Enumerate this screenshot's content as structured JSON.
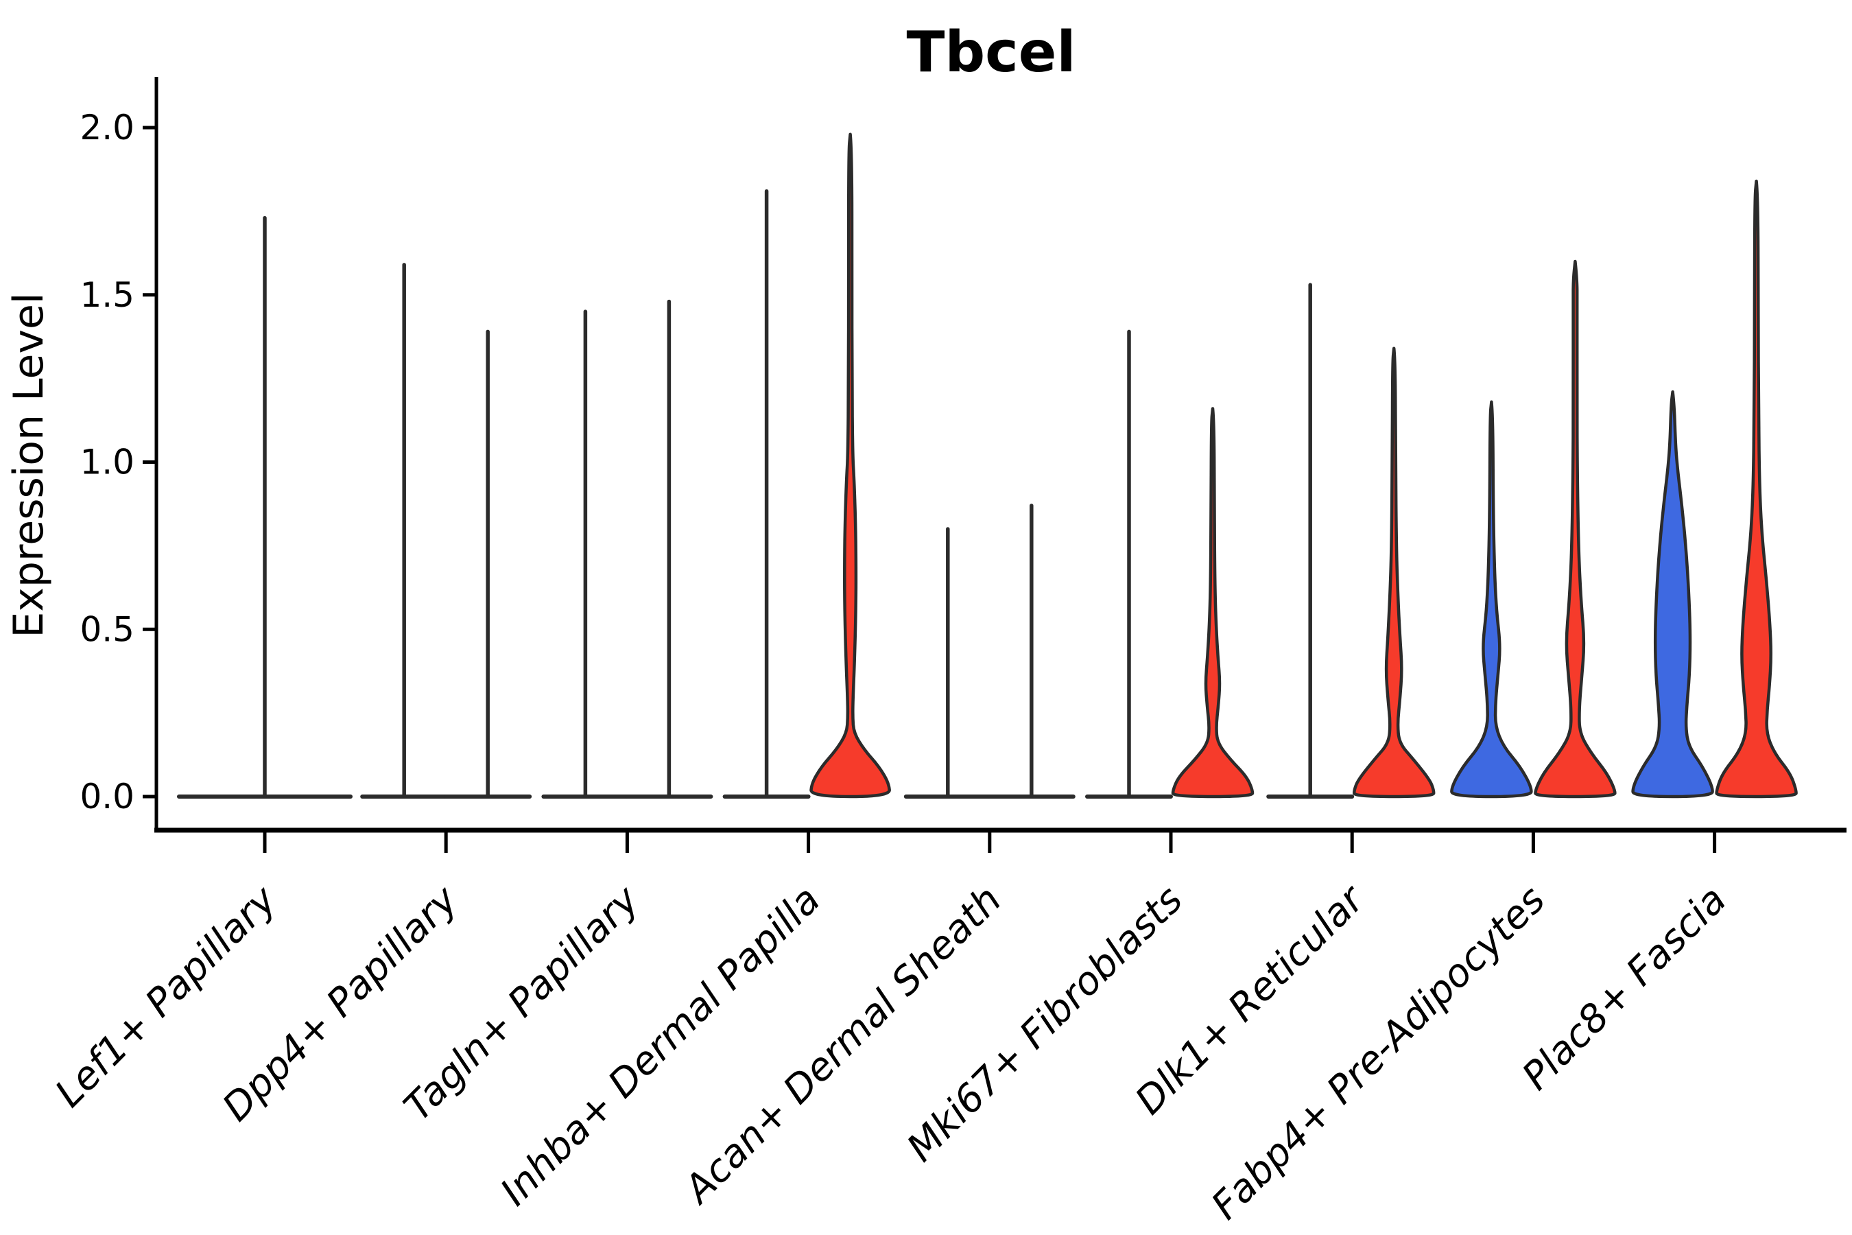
{
  "title": "Tbcel",
  "colors": {
    "background": "#ffffff",
    "axis": "#000000",
    "violin_outline": "#2b2b2b",
    "split_blue": "#3e69e1",
    "split_red": "#f63b2b"
  },
  "chart_data": {
    "type": "violin",
    "title": "Tbcel",
    "xlabel": "",
    "ylabel": "Expression Level",
    "ylim": [
      0.0,
      2.0
    ],
    "yticks": [
      {
        "value": 0.0,
        "label": "0.0"
      },
      {
        "value": 0.5,
        "label": "0.5"
      },
      {
        "value": 1.0,
        "label": "1.0"
      },
      {
        "value": 1.5,
        "label": "1.5"
      },
      {
        "value": 2.0,
        "label": "2.0"
      }
    ],
    "grid": false,
    "legend": "none",
    "categories": [
      "Lef1+ Papillary",
      "Dpp4+ Papillary",
      "Tagln+ Papillary",
      "Inhba+ Dermal Papilla",
      "Acan+ Dermal Sheath",
      "Mki67+ Fibroblasts",
      "Dlk1+ Reticular",
      "Fabp4+ Pre-Adipocytes",
      "Plac8+ Fascia"
    ],
    "groups": [
      {
        "category": "Lef1+ Papillary",
        "violins": [
          {
            "shape": "collapsed",
            "fill": "none",
            "max": 1.73,
            "width_scale": 2.05
          }
        ]
      },
      {
        "category": "Dpp4+ Papillary",
        "violins": [
          {
            "shape": "collapsed",
            "fill": "none",
            "max": 1.59
          },
          {
            "shape": "collapsed",
            "fill": "none",
            "max": 1.39
          }
        ]
      },
      {
        "category": "Tagln+ Papillary",
        "violins": [
          {
            "shape": "collapsed",
            "fill": "none",
            "max": 1.45
          },
          {
            "shape": "collapsed",
            "fill": "none",
            "max": 1.48
          }
        ]
      },
      {
        "category": "Inhba+ Dermal Papilla",
        "violins": [
          {
            "shape": "collapsed",
            "fill": "none",
            "max": 1.81
          },
          {
            "shape": "violin",
            "fill": "red",
            "max": 1.98,
            "profile": [
              [
                1.98,
                0
              ],
              [
                1.93,
                0.04
              ],
              [
                1.55,
                0.042
              ],
              [
                1.25,
                0.045
              ],
              [
                1.02,
                0.06
              ],
              [
                0.95,
                0.095
              ],
              [
                0.83,
                0.13
              ],
              [
                0.7,
                0.145
              ],
              [
                0.55,
                0.14
              ],
              [
                0.4,
                0.105
              ],
              [
                0.3,
                0.07
              ],
              [
                0.24,
                0.06
              ],
              [
                0.19,
                0.09
              ],
              [
                0.14,
                0.35
              ],
              [
                0.09,
                0.72
              ],
              [
                0.04,
                0.97
              ],
              [
                0,
                1
              ]
            ]
          }
        ]
      },
      {
        "category": "Acan+ Dermal Sheath",
        "violins": [
          {
            "shape": "collapsed",
            "fill": "none",
            "max": 0.8
          },
          {
            "shape": "collapsed",
            "fill": "none",
            "max": 0.87
          }
        ]
      },
      {
        "category": "Mki67+ Fibroblasts",
        "violins": [
          {
            "shape": "collapsed",
            "fill": "none",
            "max": 1.39
          },
          {
            "shape": "violin",
            "fill": "red",
            "max": 1.16,
            "profile": [
              [
                1.16,
                0
              ],
              [
                1.12,
                0.035
              ],
              [
                0.85,
                0.04
              ],
              [
                0.62,
                0.055
              ],
              [
                0.5,
                0.09
              ],
              [
                0.42,
                0.13
              ],
              [
                0.34,
                0.185
              ],
              [
                0.27,
                0.14
              ],
              [
                0.21,
                0.085
              ],
              [
                0.16,
                0.12
              ],
              [
                0.11,
                0.45
              ],
              [
                0.06,
                0.85
              ],
              [
                0.02,
                1
              ],
              [
                0,
                1
              ]
            ]
          }
        ]
      },
      {
        "category": "Dlk1+ Reticular",
        "violins": [
          {
            "shape": "collapsed",
            "fill": "none",
            "max": 1.53
          },
          {
            "shape": "violin",
            "fill": "red",
            "max": 1.34,
            "profile": [
              [
                1.34,
                0
              ],
              [
                1.3,
                0.035
              ],
              [
                1.0,
                0.042
              ],
              [
                0.75,
                0.06
              ],
              [
                0.6,
                0.1
              ],
              [
                0.48,
                0.15
              ],
              [
                0.38,
                0.205
              ],
              [
                0.29,
                0.15
              ],
              [
                0.22,
                0.09
              ],
              [
                0.16,
                0.13
              ],
              [
                0.11,
                0.5
              ],
              [
                0.05,
                0.9
              ],
              [
                0.02,
                1
              ],
              [
                0,
                1
              ]
            ]
          }
        ]
      },
      {
        "category": "Fabp4+ Pre-Adipocytes",
        "violins": [
          {
            "shape": "violin",
            "fill": "blue",
            "max": 1.18,
            "profile": [
              [
                1.18,
                0
              ],
              [
                1.14,
                0.035
              ],
              [
                0.85,
                0.045
              ],
              [
                0.66,
                0.08
              ],
              [
                0.55,
                0.13
              ],
              [
                0.45,
                0.225
              ],
              [
                0.36,
                0.16
              ],
              [
                0.28,
                0.1
              ],
              [
                0.21,
                0.095
              ],
              [
                0.15,
                0.3
              ],
              [
                0.09,
                0.72
              ],
              [
                0.03,
                1
              ],
              [
                0,
                1
              ]
            ]
          },
          {
            "shape": "violin",
            "fill": "red",
            "max": 1.6,
            "profile": [
              [
                1.6,
                0
              ],
              [
                1.55,
                0.045
              ],
              [
                1.48,
                0.05
              ],
              [
                1.2,
                0.045
              ],
              [
                0.95,
                0.055
              ],
              [
                0.72,
                0.09
              ],
              [
                0.58,
                0.15
              ],
              [
                0.46,
                0.235
              ],
              [
                0.35,
                0.16
              ],
              [
                0.26,
                0.1
              ],
              [
                0.19,
                0.11
              ],
              [
                0.13,
                0.4
              ],
              [
                0.07,
                0.8
              ],
              [
                0.02,
                1
              ],
              [
                0,
                1
              ]
            ]
          }
        ]
      },
      {
        "category": "Plac8+ Fascia",
        "violins": [
          {
            "shape": "violin",
            "fill": "blue",
            "max": 1.21,
            "profile": [
              [
                1.21,
                0
              ],
              [
                1.17,
                0.04
              ],
              [
                1.05,
                0.07
              ],
              [
                0.97,
                0.13
              ],
              [
                0.88,
                0.22
              ],
              [
                0.75,
                0.33
              ],
              [
                0.6,
                0.41
              ],
              [
                0.47,
                0.445
              ],
              [
                0.36,
                0.42
              ],
              [
                0.28,
                0.36
              ],
              [
                0.21,
                0.325
              ],
              [
                0.15,
                0.4
              ],
              [
                0.09,
                0.75
              ],
              [
                0.03,
                1
              ],
              [
                0,
                1
              ]
            ]
          },
          {
            "shape": "violin",
            "fill": "red",
            "max": 1.84,
            "profile": [
              [
                1.84,
                0
              ],
              [
                1.79,
                0.04
              ],
              [
                1.45,
                0.045
              ],
              [
                1.15,
                0.055
              ],
              [
                0.92,
                0.08
              ],
              [
                0.78,
                0.14
              ],
              [
                0.65,
                0.25
              ],
              [
                0.52,
                0.34
              ],
              [
                0.42,
                0.375
              ],
              [
                0.33,
                0.33
              ],
              [
                0.26,
                0.27
              ],
              [
                0.19,
                0.25
              ],
              [
                0.13,
                0.45
              ],
              [
                0.07,
                0.85
              ],
              [
                0.02,
                1
              ],
              [
                0,
                1
              ]
            ]
          }
        ]
      }
    ]
  }
}
